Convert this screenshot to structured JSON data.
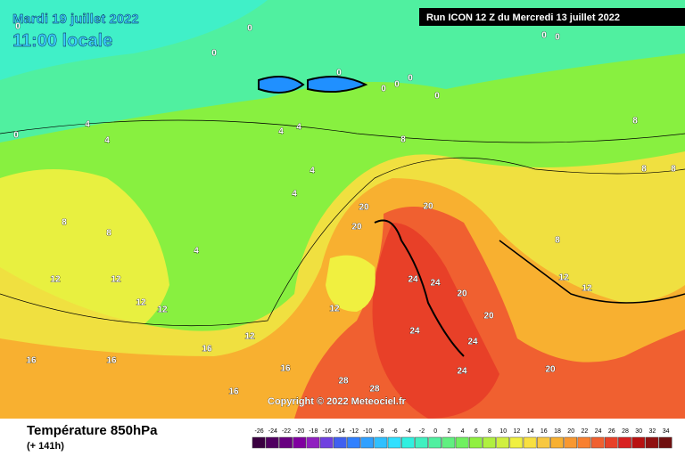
{
  "header": {
    "date": "Mardi 19 juillet 2022",
    "time": "11:00 locale",
    "run": "Run ICON 12 Z du Mercredi 13 juillet 2022"
  },
  "footer": {
    "title": "Température 850hPa",
    "lead": "(+ 141h)",
    "copyright": "Copyright © 2022 Meteociel.fr"
  },
  "scale": {
    "labels": [
      -26,
      -24,
      -22,
      -20,
      -18,
      -16,
      -14,
      -12,
      -10,
      -8,
      -6,
      -4,
      -2,
      0,
      2,
      4,
      6,
      8,
      10,
      12,
      14,
      16,
      18,
      20,
      22,
      24,
      26,
      28,
      30,
      32,
      34
    ],
    "colors": [
      "#3a0040",
      "#500060",
      "#680080",
      "#8000a0",
      "#9020c0",
      "#7040e0",
      "#4060f0",
      "#3080ff",
      "#30a0ff",
      "#30c0ff",
      "#30e0ff",
      "#30f0e0",
      "#40f0c0",
      "#50f0a0",
      "#60f080",
      "#70f060",
      "#90f040",
      "#b0f040",
      "#d0f040",
      "#f0f040",
      "#f8e040",
      "#f8c840",
      "#f8b030",
      "#f89830",
      "#f88030",
      "#f06030",
      "#e84028",
      "#d82020",
      "#b81010",
      "#901010",
      "#701010"
    ]
  },
  "contour_labels": [
    0,
    0,
    0,
    0,
    0,
    0,
    0,
    0,
    0,
    0,
    0,
    4,
    4,
    4,
    4,
    4,
    4,
    4,
    8,
    8,
    8,
    8,
    8,
    8,
    12,
    12,
    12,
    12,
    12,
    12,
    16,
    16,
    16,
    16,
    16,
    20,
    20,
    20,
    20,
    20,
    24,
    24,
    24,
    24,
    24,
    28,
    28,
    20,
    12,
    12,
    8
  ]
}
